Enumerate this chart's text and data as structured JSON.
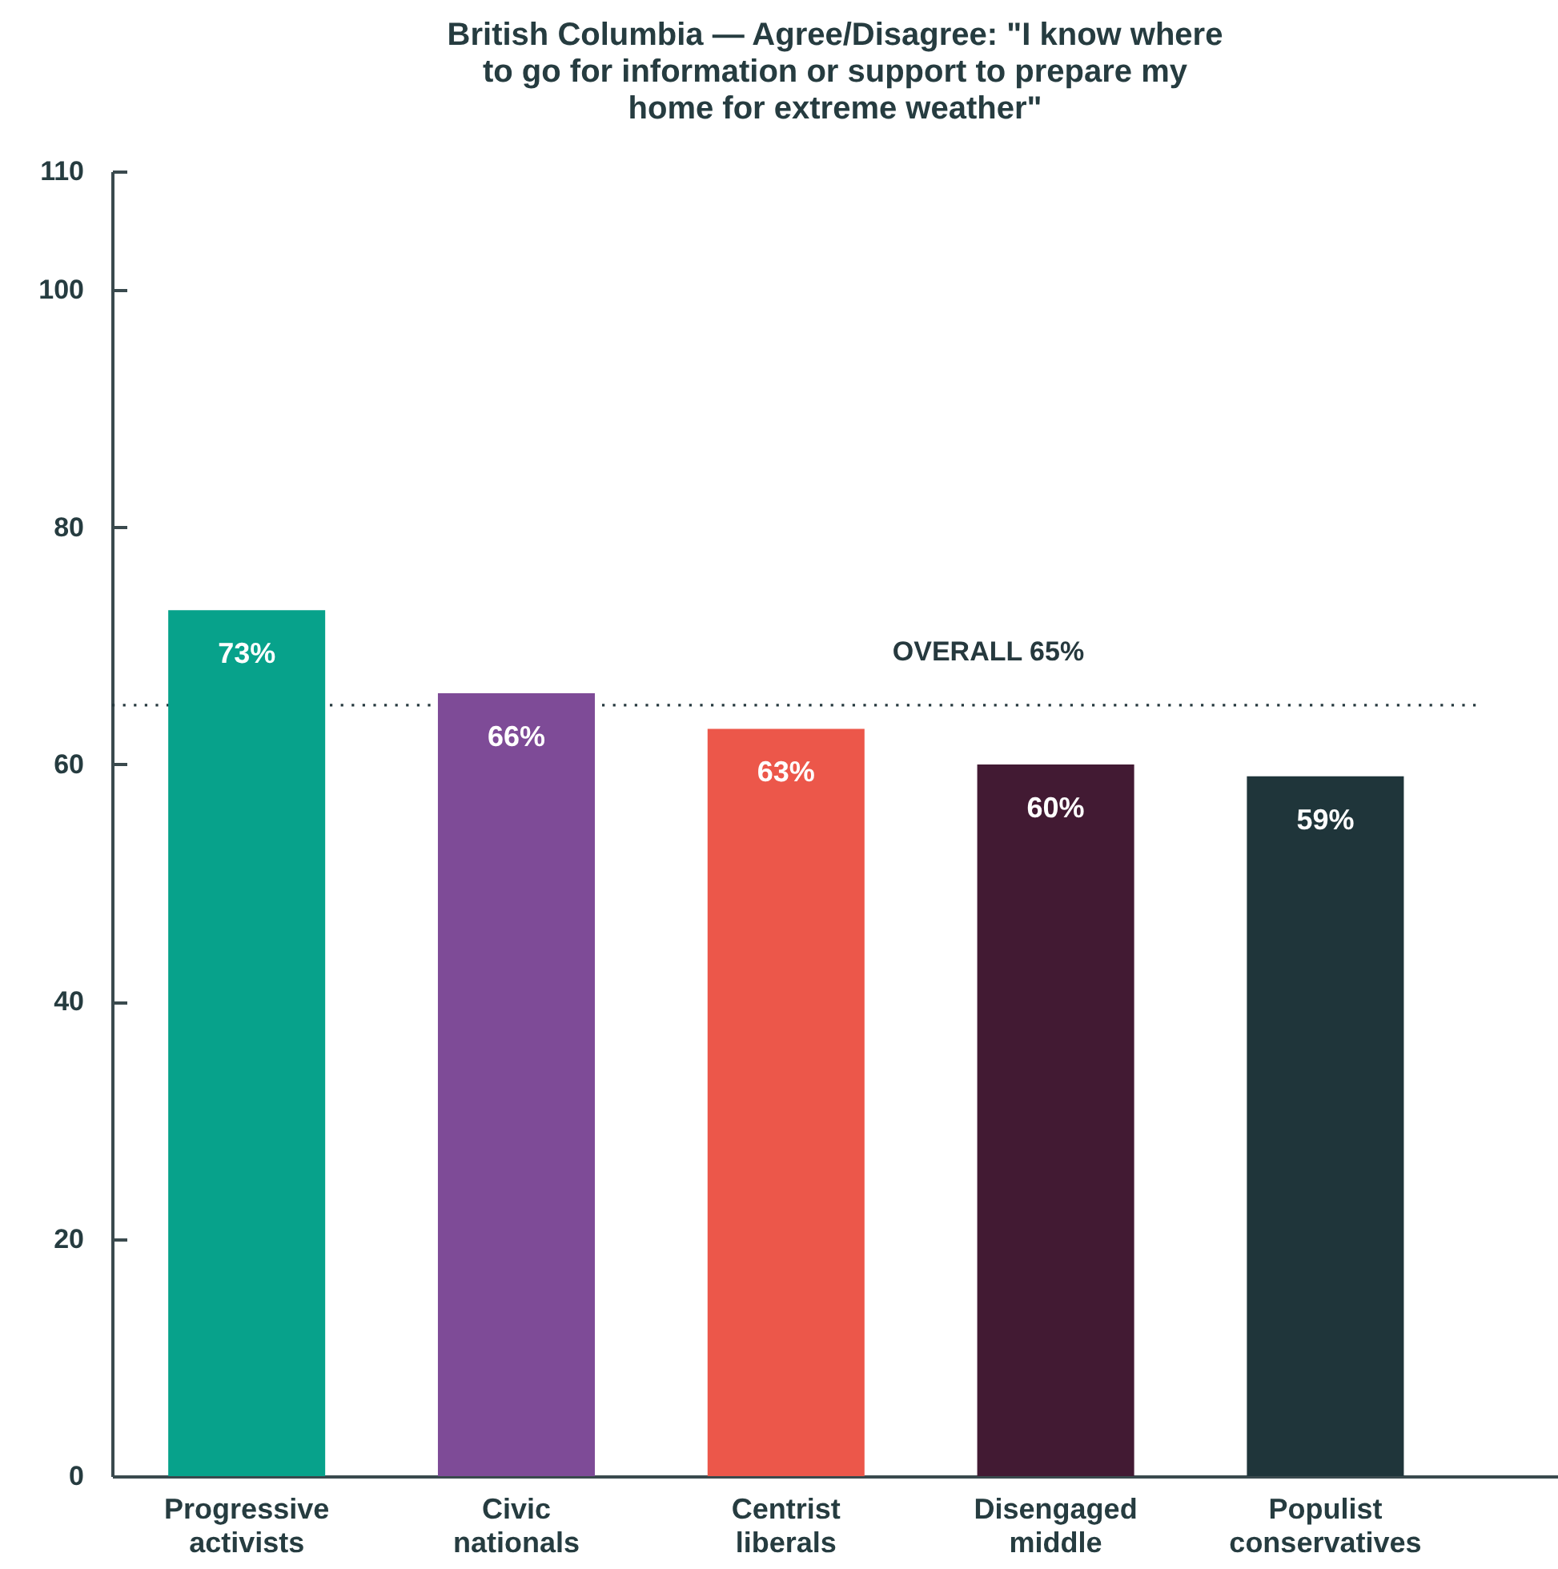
{
  "chart_data": {
    "type": "bar",
    "title": "British Columbia — Agree/Disagree: \"I know where to go for information or support to prepare my home for extreme weather\"",
    "categories": [
      "Progressive activists",
      "Civic nationals",
      "Centrist liberals",
      "Disengaged middle",
      "Populist conservatives"
    ],
    "values": [
      73,
      66,
      63,
      60,
      59
    ],
    "colors": [
      "#07a28b",
      "#7e4b97",
      "#ec574a",
      "#421a33",
      "#1f353a"
    ],
    "value_labels": [
      "73%",
      "66%",
      "63%",
      "60%",
      "59%"
    ],
    "ylim": [
      0,
      110
    ],
    "yticks": [
      0,
      20,
      40,
      60,
      80,
      100,
      110
    ],
    "ref_lines": [
      {
        "axis": "y",
        "value": 65,
        "label": "OVERALL 65%",
        "color": "#26393e",
        "line_style": "dotted"
      }
    ]
  }
}
